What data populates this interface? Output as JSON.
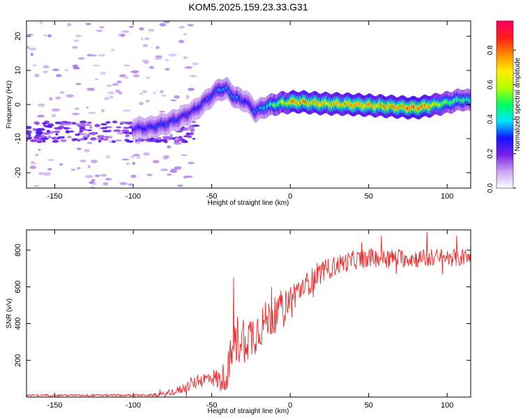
{
  "title": "KOM5.2025.159.23.33.G31",
  "colors": {
    "snr_line": "#e53030",
    "axis": "#000000"
  },
  "chart_data": [
    {
      "type": "heatmap",
      "xlabel": "Height of straight line (km)",
      "ylabel": "Frequency (Hz)",
      "xlim": [
        -168,
        115
      ],
      "ylim": [
        -24.5,
        24.5
      ],
      "xticks": [
        -150,
        -100,
        -50,
        0,
        50,
        100
      ],
      "yticks": [
        -20,
        -10,
        0,
        10,
        20
      ],
      "grid": false,
      "colorbar": {
        "label": "Normalized spectral amplitude",
        "range": [
          0.0,
          0.97
        ],
        "ticks": [
          "0.0",
          "0.2",
          "0.4",
          "0.6",
          "0.8"
        ],
        "colormap": [
          "#ffffff",
          "#c9a3f0",
          "#7a1ee8",
          "#1414ff",
          "#00e5ff",
          "#00ff60",
          "#b4ff00",
          "#ffee00",
          "#ff8a00",
          "#ff1a1a",
          "#ff0060"
        ]
      },
      "ridge": {
        "points": [
          [
            -100,
            -7
          ],
          [
            -90,
            -6.8
          ],
          [
            -80,
            -5.8
          ],
          [
            -70,
            -4
          ],
          [
            -60,
            -1.5
          ],
          [
            -55,
            0.5
          ],
          [
            -50,
            2.5
          ],
          [
            -45,
            4.5
          ],
          [
            -40,
            4.5
          ],
          [
            -35,
            2
          ],
          [
            -28,
            1
          ],
          [
            -22,
            -2
          ],
          [
            -15,
            -0.5
          ],
          [
            -5,
            0.5
          ],
          [
            5,
            0.8
          ],
          [
            20,
            0.3
          ],
          [
            40,
            0
          ],
          [
            60,
            -0.5
          ],
          [
            80,
            -1
          ],
          [
            90,
            -0.3
          ],
          [
            100,
            0.5
          ],
          [
            110,
            1.5
          ],
          [
            115,
            1
          ]
        ],
        "amplitude": [
          0.25,
          0.3,
          0.3,
          0.28,
          0.3,
          0.3,
          0.32,
          0.35,
          0.35,
          0.35,
          0.3,
          0.35,
          0.4,
          0.6,
          0.8,
          0.7,
          0.75,
          0.8,
          0.85,
          0.7,
          0.55,
          0.5,
          0.45
        ]
      },
      "noise": {
        "x_range": [
          -168,
          -60
        ],
        "band_center": -8,
        "band_halfwidth": 3
      }
    },
    {
      "type": "line",
      "xlabel": "Height of straight line (km)",
      "ylabel": "SNR (v/v)",
      "xlim": [
        -168,
        115
      ],
      "ylim": [
        0,
        910
      ],
      "xticks": [
        -150,
        -100,
        -50,
        0,
        50,
        100
      ],
      "yticks": [
        200,
        400,
        600,
        800
      ],
      "grid": false,
      "series": [
        {
          "envelope": [
            [
              -168,
              10
            ],
            [
              -90,
              10
            ],
            [
              -80,
              15
            ],
            [
              -70,
              40
            ],
            [
              -60,
              80
            ],
            [
              -50,
              110
            ],
            [
              -45,
              90
            ],
            [
              -40,
              130
            ],
            [
              -37,
              250
            ],
            [
              -33,
              320
            ],
            [
              -25,
              330
            ],
            [
              -15,
              420
            ],
            [
              -5,
              470
            ],
            [
              0,
              540
            ],
            [
              10,
              610
            ],
            [
              20,
              680
            ],
            [
              30,
              720
            ],
            [
              40,
              745
            ],
            [
              50,
              755
            ],
            [
              60,
              760
            ],
            [
              80,
              755
            ],
            [
              100,
              760
            ],
            [
              115,
              760
            ]
          ],
          "noise_amplitude": [
            [
              -168,
              5
            ],
            [
              -90,
              6
            ],
            [
              -70,
              25
            ],
            [
              -50,
              45
            ],
            [
              -40,
              90
            ],
            [
              -35,
              150
            ],
            [
              -20,
              120
            ],
            [
              -5,
              90
            ],
            [
              10,
              70
            ],
            [
              30,
              55
            ],
            [
              60,
              50
            ],
            [
              115,
              50
            ]
          ],
          "peaks": [
            [
              -36,
              650
            ],
            [
              -12,
              600
            ],
            [
              -6,
              580
            ],
            [
              58,
              880
            ],
            [
              87,
              900
            ],
            [
              106,
              880
            ]
          ]
        }
      ]
    }
  ]
}
